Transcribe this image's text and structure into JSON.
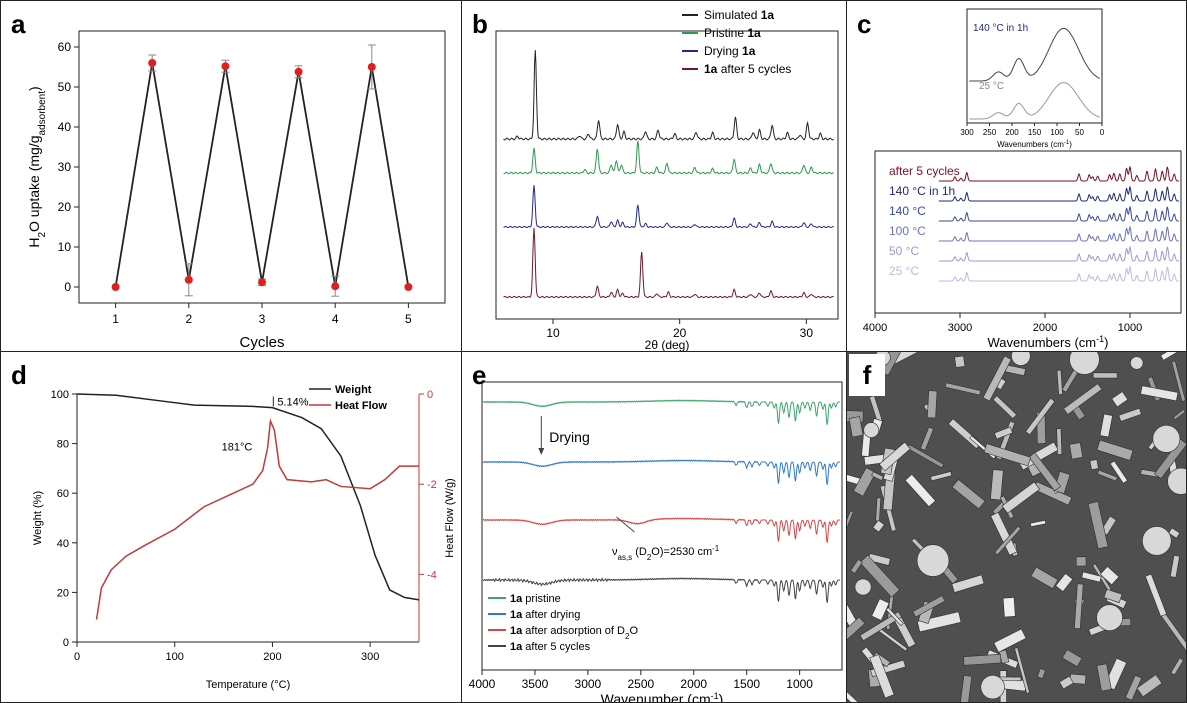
{
  "panels": {
    "a": "a",
    "b": "b",
    "c": "c",
    "d": "d",
    "e": "e",
    "f": "f"
  },
  "colors": {
    "black": "#222222",
    "red": "#e02020",
    "green": "#2e9a4e",
    "navy": "#23288a",
    "maroon": "#6e1a2a",
    "blue": "#2a6fc4",
    "tga_red": "#c23a3a",
    "e_green": "#3ea66a",
    "e_blue": "#2f7ad0",
    "e_red": "#d44848",
    "e_gray": "#444444",
    "c_inset": "#5a5a6a"
  },
  "chart_data": [
    {
      "id": "a",
      "type": "line",
      "xlabel": "Cycles",
      "ylabel": "H2O uptake (mg/gadsorbent)",
      "ylabel_parts": {
        "main": "H",
        "sub1": "2",
        "mid": "O uptake (mg/g",
        "sub2": "adsorbent",
        "end": ")"
      },
      "xlim": [
        0.5,
        5.5
      ],
      "ylim": [
        -4,
        64
      ],
      "xticks": [
        "1",
        "2",
        "3",
        "4",
        "5"
      ],
      "yticks": [
        "0",
        "10",
        "20",
        "30",
        "40",
        "50",
        "60"
      ],
      "x": [
        1,
        1.5,
        2,
        2.5,
        3,
        3.5,
        4,
        4.5,
        5
      ],
      "y": [
        0,
        56,
        1.8,
        55.2,
        1.2,
        53.8,
        0.2,
        55,
        0
      ],
      "err": [
        0,
        2,
        4,
        1.5,
        0.8,
        1.5,
        2.5,
        5.5,
        0
      ]
    },
    {
      "id": "b",
      "type": "line",
      "xlabel": "2θ (deg)",
      "xlim": [
        5.5,
        32.5
      ],
      "xticks": [
        "10",
        "20",
        "30"
      ],
      "series": [
        {
          "name": "Simulated",
          "suffix": " 1a",
          "prefix": "",
          "peaks": [
            [
              8.6,
              1.0
            ],
            [
              13.6,
              0.22
            ],
            [
              15.1,
              0.17
            ],
            [
              15.6,
              0.08
            ],
            [
              17.3,
              0.09
            ],
            [
              18.3,
              0.1
            ],
            [
              19.6,
              0.06
            ],
            [
              21.3,
              0.08
            ],
            [
              22.6,
              0.07
            ],
            [
              24.4,
              0.25
            ],
            [
              25.8,
              0.08
            ],
            [
              26.3,
              0.1
            ],
            [
              27.3,
              0.16
            ],
            [
              28.5,
              0.07
            ],
            [
              29.5,
              0.05
            ],
            [
              30.1,
              0.18
            ],
            [
              31.1,
              0.06
            ],
            [
              12.1,
              0.04
            ],
            [
              12.8,
              0.06
            ],
            [
              7.2,
              0.03
            ]
          ]
        },
        {
          "name": "Pristine",
          "suffix": " 1a",
          "prefix": "",
          "peaks": [
            [
              8.5,
              0.35
            ],
            [
              13.5,
              0.35
            ],
            [
              14.6,
              0.12
            ],
            [
              15.0,
              0.18
            ],
            [
              15.4,
              0.12
            ],
            [
              16.7,
              0.45
            ],
            [
              18.2,
              0.08
            ],
            [
              19.0,
              0.14
            ],
            [
              21.2,
              0.08
            ],
            [
              22.6,
              0.06
            ],
            [
              24.3,
              0.2
            ],
            [
              25.6,
              0.07
            ],
            [
              26.3,
              0.12
            ],
            [
              27.2,
              0.14
            ],
            [
              29.8,
              0.12
            ],
            [
              30.4,
              0.08
            ],
            [
              12.5,
              0.05
            ]
          ]
        },
        {
          "name": "Drying",
          "suffix": " 1a",
          "prefix": "",
          "peaks": [
            [
              8.5,
              0.75
            ],
            [
              13.5,
              0.2
            ],
            [
              14.6,
              0.1
            ],
            [
              15.1,
              0.12
            ],
            [
              15.5,
              0.08
            ],
            [
              16.7,
              0.4
            ],
            [
              17.3,
              0.06
            ],
            [
              19.0,
              0.08
            ],
            [
              21.2,
              0.05
            ],
            [
              24.3,
              0.16
            ],
            [
              25.6,
              0.06
            ],
            [
              26.3,
              0.08
            ],
            [
              27.3,
              0.1
            ],
            [
              29.8,
              0.08
            ],
            [
              30.4,
              0.06
            ]
          ]
        },
        {
          "name": "after 5 cycles",
          "suffix": "",
          "prefix": "1a ",
          "peaks": [
            [
              8.5,
              1.15
            ],
            [
              13.5,
              0.18
            ],
            [
              14.6,
              0.08
            ],
            [
              15.1,
              0.12
            ],
            [
              15.5,
              0.06
            ],
            [
              17.0,
              0.75
            ],
            [
              18.2,
              0.06
            ],
            [
              19.1,
              0.08
            ],
            [
              21.2,
              0.05
            ],
            [
              24.3,
              0.12
            ],
            [
              25.6,
              0.05
            ],
            [
              26.3,
              0.07
            ],
            [
              27.2,
              0.1
            ],
            [
              29.8,
              0.07
            ],
            [
              30.4,
              0.05
            ]
          ]
        }
      ]
    },
    {
      "id": "c",
      "type": "line",
      "xlabel": "Wavenumbers (cm-1)",
      "xlabel_parts": {
        "main": "Wavenumbers (cm",
        "sup": "-1",
        "end": ")"
      },
      "xlim": [
        4000,
        400
      ],
      "xticks": [
        "4000",
        "3000",
        "2000",
        "1000"
      ],
      "series": [
        "after 5 cycles",
        "140 °C in 1h",
        "140 °C",
        "100 °C",
        "50 °C",
        "25 °C"
      ],
      "series_colors": [
        "#7a1020",
        "#1e2a78",
        "#3a4a9a",
        "#6a74b8",
        "#9a9ccc",
        "#b8bcde"
      ],
      "inset": {
        "xlabel": "Wavenumbers (cm-1)",
        "xlim": [
          300,
          0
        ],
        "xticks": [
          "300",
          "250",
          "200",
          "150",
          "100",
          "50",
          "0"
        ],
        "series": [
          "140 °C in 1h",
          "25 °C"
        ]
      }
    },
    {
      "id": "d",
      "type": "line",
      "xlabel": "Temperature (°C)",
      "ylabel": "Weight (%)",
      "y2label": "Heat Flow (W/g)",
      "xlim": [
        0,
        350
      ],
      "ylim": [
        0,
        100
      ],
      "y2lim": [
        -5.5,
        0
      ],
      "xticks": [
        "0",
        "100",
        "200",
        "300"
      ],
      "yticks": [
        "0",
        "20",
        "40",
        "60",
        "80",
        "100"
      ],
      "y2ticks": [
        "0",
        "-2",
        "-4"
      ],
      "series": [
        {
          "name": "Weight"
        },
        {
          "name": "Heat Flow"
        }
      ],
      "weight": [
        [
          0,
          100
        ],
        [
          40,
          99.5
        ],
        [
          90,
          97
        ],
        [
          120,
          95.5
        ],
        [
          180,
          95
        ],
        [
          200,
          94.5
        ],
        [
          230,
          90.5
        ],
        [
          250,
          86
        ],
        [
          270,
          75
        ],
        [
          290,
          55
        ],
        [
          305,
          35
        ],
        [
          320,
          21
        ],
        [
          335,
          18
        ],
        [
          350,
          17
        ]
      ],
      "heatflow": [
        [
          20,
          -5
        ],
        [
          25,
          -4.3
        ],
        [
          35,
          -3.9
        ],
        [
          50,
          -3.6
        ],
        [
          70,
          -3.35
        ],
        [
          100,
          -3
        ],
        [
          130,
          -2.5
        ],
        [
          160,
          -2.2
        ],
        [
          180,
          -2.0
        ],
        [
          190,
          -1.7
        ],
        [
          195,
          -1.2
        ],
        [
          198,
          -0.6
        ],
        [
          202,
          -0.8
        ],
        [
          207,
          -1.6
        ],
        [
          215,
          -1.9
        ],
        [
          240,
          -1.95
        ],
        [
          255,
          -1.9
        ],
        [
          270,
          -2.05
        ],
        [
          300,
          -2.1
        ],
        [
          315,
          -1.9
        ],
        [
          330,
          -1.6
        ],
        [
          350,
          -1.6
        ]
      ],
      "annotations": {
        "mass_loss": "5.14%",
        "peak": "181°C"
      }
    },
    {
      "id": "e",
      "type": "line",
      "xlabel": "Wavenumber (cm-1)",
      "xlabel_parts": {
        "main": "Wavenumber (cm",
        "sup": "-1",
        "end": ")"
      },
      "xlim": [
        4000,
        600
      ],
      "xticks": [
        "4000",
        "3500",
        "3000",
        "2500",
        "2000",
        "1500",
        "1000"
      ],
      "series": [
        {
          "name": "1a pristine"
        },
        {
          "name": "1a after drying"
        },
        {
          "name": "1a after adsorption of D2O"
        },
        {
          "name": "1a after 5 cycles"
        }
      ],
      "legend_parts": [
        {
          "b": "1a",
          "t": " pristine"
        },
        {
          "b": "1a",
          "t": " after drying"
        },
        {
          "b": "1a",
          "t": " after adsorption of D",
          "sub": "2",
          "end": "O"
        },
        {
          "b": "1a",
          "t": " after 5 cycles"
        }
      ],
      "annotations": {
        "drying": "Drying",
        "d2o": "νas,s (D2O)=2530 cm-1",
        "d2o_parts": {
          "nu": "ν",
          "sub": "as,s",
          "mid": " (D",
          "sub2": "2",
          "mid2": "O)=2530 cm",
          "sup": "-1"
        }
      }
    }
  ]
}
